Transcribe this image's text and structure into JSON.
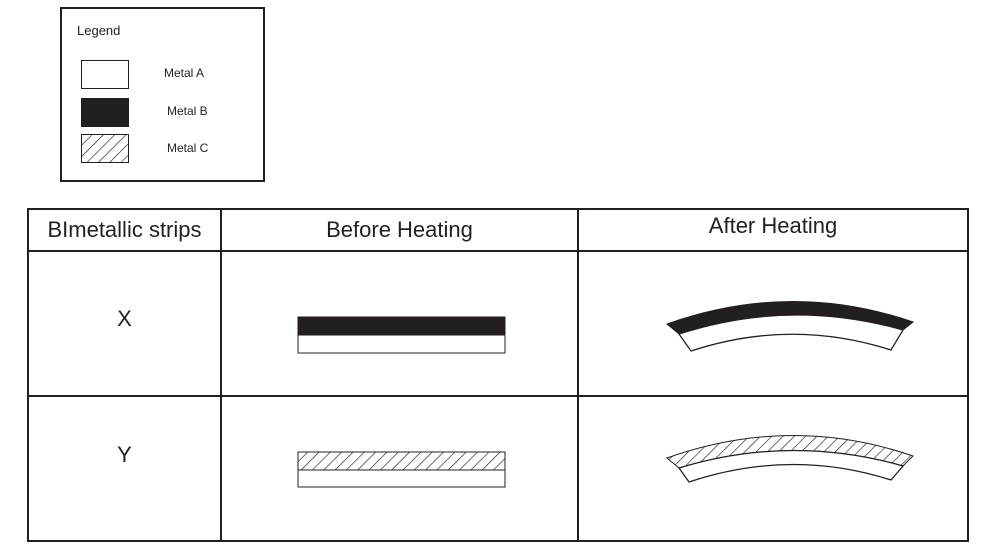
{
  "legend": {
    "title": "Legend",
    "items": [
      {
        "label": "Metal A",
        "fill": "#ffffff"
      },
      {
        "label": "Metal B",
        "fill": "#231f20"
      },
      {
        "label": "Metal C",
        "fill": "hatched"
      }
    ]
  },
  "table": {
    "headers": [
      "BImetallic strips",
      "Before Heating",
      "After Heating"
    ],
    "rows": [
      {
        "label": "X",
        "top_metal": "Metal B",
        "bottom_metal": "Metal A",
        "after_heating": "bends with Metal B on outer side"
      },
      {
        "label": "Y",
        "top_metal": "Metal C",
        "bottom_metal": "Metal A",
        "after_heating": "bends with Metal C on outer side"
      }
    ]
  },
  "colors": {
    "ink": "#231f20",
    "background": "#ffffff"
  }
}
